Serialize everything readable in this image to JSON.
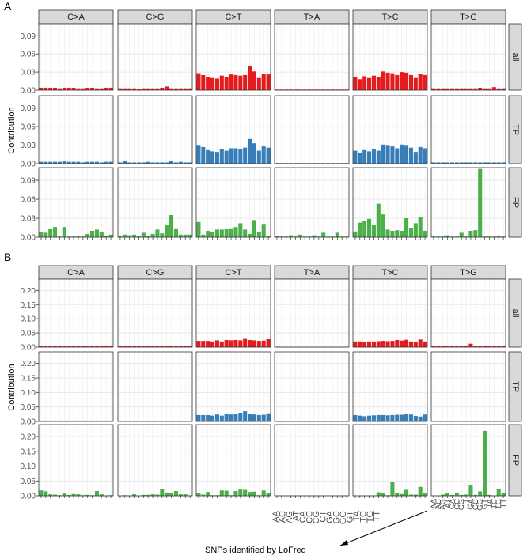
{
  "chart_data": [
    {
      "panel_tag": "A",
      "type": "bar",
      "facet_columns": [
        "C>A",
        "C>G",
        "C>T",
        "T>A",
        "T>C",
        "T>G"
      ],
      "facet_rows": [
        "all",
        "TP",
        "FP"
      ],
      "row_colors": {
        "all": "#e41a1c",
        "TP": "#377eb8",
        "FP": "#4daf4a"
      },
      "ylabel": "Contribution",
      "yticks": [
        "0.00",
        "0.03",
        "0.06",
        "0.09"
      ],
      "ylim": [
        0,
        0.11
      ],
      "grid": true,
      "bars_per_facet": 16,
      "series": [
        {
          "row": "all",
          "values": {
            "C>A": [
              0.004,
              0.004,
              0.004,
              0.004,
              0.003,
              0.004,
              0.004,
              0.004,
              0.003,
              0.003,
              0.004,
              0.004,
              0.003,
              0.003,
              0.004,
              0.004
            ],
            "C>G": [
              0.003,
              0.003,
              0.003,
              0.003,
              0.002,
              0.003,
              0.003,
              0.003,
              0.003,
              0.004,
              0.006,
              0.003,
              0.003,
              0.003,
              0.003,
              0.003
            ],
            "C>T": [
              0.028,
              0.025,
              0.022,
              0.02,
              0.019,
              0.024,
              0.022,
              0.026,
              0.025,
              0.024,
              0.025,
              0.04,
              0.031,
              0.02,
              0.027,
              0.026
            ],
            "T>A": [
              0.001,
              0.001,
              0.001,
              0.001,
              0.001,
              0.001,
              0.001,
              0.001,
              0.001,
              0.001,
              0.001,
              0.001,
              0.001,
              0.001,
              0.001,
              0.001
            ],
            "T>C": [
              0.021,
              0.018,
              0.023,
              0.02,
              0.024,
              0.021,
              0.031,
              0.029,
              0.028,
              0.025,
              0.03,
              0.029,
              0.025,
              0.02,
              0.027,
              0.025
            ],
            "T>G": [
              0.003,
              0.003,
              0.003,
              0.003,
              0.003,
              0.003,
              0.003,
              0.003,
              0.003,
              0.003,
              0.004,
              0.003,
              0.003,
              0.005,
              0.003,
              0.003
            ]
          }
        },
        {
          "row": "TP",
          "values": {
            "C>A": [
              0.003,
              0.003,
              0.003,
              0.003,
              0.003,
              0.004,
              0.003,
              0.003,
              0.003,
              0.002,
              0.003,
              0.003,
              0.003,
              0.002,
              0.003,
              0.003
            ],
            "C>G": [
              0.002,
              0.004,
              0.002,
              0.002,
              0.002,
              0.002,
              0.003,
              0.002,
              0.002,
              0.002,
              0.002,
              0.004,
              0.002,
              0.003,
              0.002,
              0.002
            ],
            "C>T": [
              0.029,
              0.027,
              0.022,
              0.02,
              0.019,
              0.024,
              0.021,
              0.025,
              0.025,
              0.024,
              0.026,
              0.04,
              0.033,
              0.021,
              0.028,
              0.026
            ],
            "T>A": [
              0.001,
              0.001,
              0.001,
              0.001,
              0.001,
              0.001,
              0.001,
              0.001,
              0.001,
              0.001,
              0.001,
              0.001,
              0.001,
              0.001,
              0.001,
              0.001
            ],
            "T>C": [
              0.021,
              0.018,
              0.022,
              0.02,
              0.024,
              0.021,
              0.031,
              0.029,
              0.028,
              0.025,
              0.031,
              0.029,
              0.026,
              0.019,
              0.027,
              0.025
            ],
            "T>G": [
              0.002,
              0.002,
              0.002,
              0.002,
              0.002,
              0.002,
              0.002,
              0.002,
              0.002,
              0.002,
              0.002,
              0.002,
              0.002,
              0.002,
              0.002,
              0.002
            ]
          }
        },
        {
          "row": "FP",
          "values": {
            "C>A": [
              0.008,
              0.007,
              0.013,
              0.016,
              0.001,
              0.016,
              0.001,
              0.001,
              0.002,
              0.001,
              0.005,
              0.01,
              0.012,
              0.008,
              0.002,
              0.004
            ],
            "C>G": [
              0.002,
              0.004,
              0.003,
              0.004,
              0.002,
              0.007,
              0.002,
              0.005,
              0.012,
              0.006,
              0.019,
              0.035,
              0.014,
              0.004,
              0.004,
              0.004
            ],
            "C>T": [
              0.024,
              0.004,
              0.01,
              0.008,
              0.012,
              0.012,
              0.013,
              0.014,
              0.016,
              0.022,
              0.012,
              0.005,
              0.027,
              0.008,
              0.021,
              0.002
            ],
            "T>A": [
              0.002,
              0.001,
              0.001,
              0.003,
              0.001,
              0.004,
              0.001,
              0.001,
              0.003,
              0.001,
              0.007,
              0.001,
              0.001,
              0.007,
              0.001,
              0.001
            ],
            "T>C": [
              0.009,
              0.023,
              0.025,
              0.029,
              0.019,
              0.053,
              0.036,
              0.012,
              0.01,
              0.011,
              0.01,
              0.03,
              0.015,
              0.022,
              0.032,
              0.01
            ],
            "T>G": [
              0.001,
              0.001,
              0.001,
              0.003,
              0.001,
              0.001,
              0.007,
              0.001,
              0.01,
              0.011,
              0.108,
              0.001,
              0.001,
              0.001,
              0.002,
              0.001
            ]
          }
        }
      ]
    },
    {
      "panel_tag": "B",
      "type": "bar",
      "facet_columns": [
        "C>A",
        "C>G",
        "C>T",
        "T>A",
        "T>C",
        "T>G"
      ],
      "facet_rows": [
        "all",
        "TP",
        "FP"
      ],
      "row_colors": {
        "all": "#e41a1c",
        "TP": "#377eb8",
        "FP": "#4daf4a"
      },
      "ylabel": "Contribution",
      "yticks": [
        "0.00",
        "0.05",
        "0.10",
        "0.15",
        "0.20"
      ],
      "ylim": [
        0,
        0.24
      ],
      "grid": true,
      "bars_per_facet": 16,
      "series": [
        {
          "row": "all",
          "values": {
            "C>A": [
              0.004,
              0.004,
              0.003,
              0.004,
              0.003,
              0.004,
              0.003,
              0.003,
              0.004,
              0.003,
              0.003,
              0.004,
              0.005,
              0.003,
              0.003,
              0.004
            ],
            "C>G": [
              0.003,
              0.004,
              0.003,
              0.003,
              0.003,
              0.003,
              0.003,
              0.003,
              0.003,
              0.005,
              0.004,
              0.003,
              0.005,
              0.003,
              0.003,
              0.003
            ],
            "C>T": [
              0.022,
              0.022,
              0.022,
              0.02,
              0.024,
              0.02,
              0.025,
              0.024,
              0.025,
              0.024,
              0.029,
              0.025,
              0.024,
              0.022,
              0.023,
              0.028
            ],
            "T>A": [
              0.001,
              0.001,
              0.001,
              0.001,
              0.001,
              0.001,
              0.001,
              0.001,
              0.001,
              0.001,
              0.001,
              0.001,
              0.001,
              0.001,
              0.001,
              0.001
            ],
            "T>C": [
              0.02,
              0.02,
              0.018,
              0.02,
              0.02,
              0.021,
              0.022,
              0.021,
              0.022,
              0.025,
              0.023,
              0.026,
              0.02,
              0.019,
              0.027,
              0.02
            ],
            "T>G": [
              0.003,
              0.004,
              0.004,
              0.004,
              0.004,
              0.005,
              0.004,
              0.004,
              0.012,
              0.004,
              0.004,
              0.004,
              0.003,
              0.003,
              0.004,
              0.004
            ]
          }
        },
        {
          "row": "TP",
          "values": {
            "C>A": [
              0.003,
              0.003,
              0.003,
              0.003,
              0.003,
              0.003,
              0.003,
              0.003,
              0.003,
              0.003,
              0.003,
              0.003,
              0.003,
              0.003,
              0.003,
              0.003
            ],
            "C>G": [
              0.002,
              0.002,
              0.002,
              0.002,
              0.002,
              0.002,
              0.002,
              0.002,
              0.002,
              0.002,
              0.002,
              0.002,
              0.002,
              0.002,
              0.002,
              0.002
            ],
            "C>T": [
              0.022,
              0.022,
              0.022,
              0.02,
              0.024,
              0.02,
              0.025,
              0.024,
              0.025,
              0.03,
              0.035,
              0.027,
              0.024,
              0.022,
              0.023,
              0.028
            ],
            "T>A": [
              0.001,
              0.001,
              0.001,
              0.001,
              0.001,
              0.001,
              0.001,
              0.001,
              0.001,
              0.001,
              0.001,
              0.001,
              0.001,
              0.001,
              0.001,
              0.001
            ],
            "T>C": [
              0.022,
              0.02,
              0.018,
              0.02,
              0.021,
              0.022,
              0.022,
              0.021,
              0.022,
              0.023,
              0.023,
              0.026,
              0.024,
              0.019,
              0.017,
              0.024
            ],
            "T>G": [
              0.002,
              0.002,
              0.002,
              0.002,
              0.002,
              0.002,
              0.002,
              0.002,
              0.002,
              0.002,
              0.002,
              0.002,
              0.002,
              0.002,
              0.002,
              0.002
            ]
          }
        },
        {
          "row": "FP",
          "values": {
            "C>A": [
              0.018,
              0.015,
              0.005,
              0.004,
              0.002,
              0.008,
              0.003,
              0.006,
              0.005,
              0.002,
              0.003,
              0.002,
              0.016,
              0.005,
              0.001,
              0.002
            ],
            "C>G": [
              0.001,
              0.002,
              0.001,
              0.005,
              0.001,
              0.003,
              0.003,
              0.005,
              0.004,
              0.022,
              0.011,
              0.008,
              0.016,
              0.005,
              0.005,
              0.001
            ],
            "C>T": [
              0.01,
              0.004,
              0.013,
              0.002,
              0.002,
              0.018,
              0.017,
              0.002,
              0.016,
              0.021,
              0.02,
              0.013,
              0.014,
              0.002,
              0.018,
              0.008
            ],
            "T>A": [
              0.001,
              0.001,
              0.001,
              0.001,
              0.001,
              0.001,
              0.001,
              0.001,
              0.001,
              0.001,
              0.001,
              0.001,
              0.001,
              0.001,
              0.001,
              0.001
            ],
            "T>C": [
              0.001,
              0.001,
              0.001,
              0.001,
              0.001,
              0.012,
              0.008,
              0.002,
              0.047,
              0.01,
              0.006,
              0.02,
              0.004,
              0.004,
              0.03,
              0.01
            ],
            "T>G": [
              0.001,
              0.001,
              0.004,
              0.008,
              0.003,
              0.011,
              0.003,
              0.004,
              0.037,
              0.003,
              0.015,
              0.219,
              0.003,
              0.001,
              0.024,
              0.01
            ]
          }
        }
      ]
    }
  ],
  "motif_labels": [
    "AA",
    "AC",
    "AG",
    "AT",
    "CA",
    "CC",
    "CG",
    "CT",
    "GA",
    "GC",
    "GG",
    "GT",
    "TA",
    "TC",
    "TG",
    "TT"
  ],
  "motif_highlight_index": 10,
  "motif_highlight_color": "#e7298a",
  "caption": "SNPs identified by LoFreq"
}
